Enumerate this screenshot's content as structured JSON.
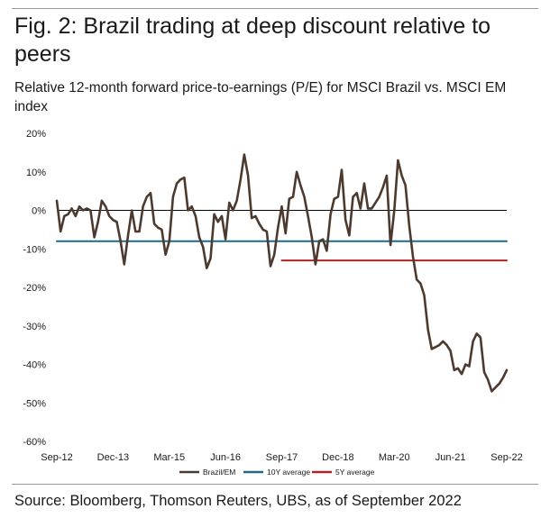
{
  "title": "Fig. 2: Brazil trading at deep discount relative to peers",
  "subtitle": "Relative 12-month forward price-to-earnings (P/E) for MSCI Brazil vs. MSCI EM index",
  "source": "Source: Bloomberg, Thomson Reuters, UBS, as of September 2022",
  "colors": {
    "brazil_em": "#4d3a2f",
    "avg_10y": "#1f6a8a",
    "avg_5y": "#b22222",
    "zero_line": "#000000",
    "rules": "#9a9a9a"
  },
  "chart_data": {
    "type": "line",
    "title": "Fig. 2: Brazil trading at deep discount relative to peers",
    "subtitle": "Relative 12-month forward price-to-earnings (P/E) for MSCI Brazil vs. MSCI EM index",
    "xlabel": "",
    "ylabel": "",
    "x_tick_labels": [
      "Sep-12",
      "Dec-13",
      "Mar-15",
      "Jun-16",
      "Sep-17",
      "Dec-18",
      "Mar-20",
      "Jun-21",
      "Sep-22"
    ],
    "y_ticks": [
      20,
      10,
      0,
      -10,
      -20,
      -30,
      -40,
      -50,
      -60
    ],
    "y_tick_labels": [
      "20%",
      "10%",
      "0%",
      "-10%",
      "-20%",
      "-30%",
      "-40%",
      "-50%",
      "-60%"
    ],
    "ylim": [
      -60,
      20
    ],
    "xlim": [
      "2012-09",
      "2022-09"
    ],
    "grid": false,
    "legend_position": "bottom",
    "series": [
      {
        "name": "Brazil/EM",
        "points": [
          [
            "2012-09",
            2.5
          ],
          [
            "2012-10",
            -5.5
          ],
          [
            "2012-11",
            -1.5
          ],
          [
            "2012-12",
            -1.0
          ],
          [
            "2013-01",
            0.5
          ],
          [
            "2013-02",
            -1.5
          ],
          [
            "2013-03",
            1.0
          ],
          [
            "2013-04",
            0.0
          ],
          [
            "2013-05",
            0.5
          ],
          [
            "2013-06",
            0.0
          ],
          [
            "2013-07",
            -7.0
          ],
          [
            "2013-08",
            -3.0
          ],
          [
            "2013-09",
            2.5
          ],
          [
            "2013-10",
            1.0
          ],
          [
            "2013-11",
            -1.5
          ],
          [
            "2013-12",
            -2.5
          ],
          [
            "2014-01",
            -3.0
          ],
          [
            "2014-02",
            -8.0
          ],
          [
            "2014-03",
            -14.0
          ],
          [
            "2014-04",
            -6.5
          ],
          [
            "2014-05",
            0.0
          ],
          [
            "2014-06",
            -5.5
          ],
          [
            "2014-07",
            -5.5
          ],
          [
            "2014-08",
            1.0
          ],
          [
            "2014-09",
            3.5
          ],
          [
            "2014-10",
            4.5
          ],
          [
            "2014-11",
            -3.5
          ],
          [
            "2014-12",
            -4.5
          ],
          [
            "2015-01",
            -5.0
          ],
          [
            "2015-02",
            -11.5
          ],
          [
            "2015-03",
            -8.0
          ],
          [
            "2015-04",
            3.5
          ],
          [
            "2015-05",
            7.0
          ],
          [
            "2015-06",
            8.0
          ],
          [
            "2015-07",
            8.5
          ],
          [
            "2015-08",
            0.0
          ],
          [
            "2015-09",
            1.0
          ],
          [
            "2015-10",
            -1.5
          ],
          [
            "2015-11",
            -7.0
          ],
          [
            "2015-12",
            -9.5
          ],
          [
            "2016-01",
            -15.0
          ],
          [
            "2016-02",
            -12.5
          ],
          [
            "2016-03",
            -1.0
          ],
          [
            "2016-04",
            -3.0
          ],
          [
            "2016-05",
            -1.5
          ],
          [
            "2016-06",
            -7.5
          ],
          [
            "2016-07",
            2.0
          ],
          [
            "2016-08",
            0.0
          ],
          [
            "2016-09",
            2.5
          ],
          [
            "2016-10",
            8.0
          ],
          [
            "2016-11",
            14.5
          ],
          [
            "2016-12",
            9.0
          ],
          [
            "2017-01",
            -2.0
          ],
          [
            "2017-02",
            -1.5
          ],
          [
            "2017-03",
            -3.5
          ],
          [
            "2017-04",
            -5.0
          ],
          [
            "2017-05",
            -5.5
          ],
          [
            "2017-06",
            -14.5
          ],
          [
            "2017-07",
            -11.5
          ],
          [
            "2017-08",
            -4.5
          ],
          [
            "2017-09",
            1.0
          ],
          [
            "2017-10",
            -6.0
          ],
          [
            "2017-11",
            3.0
          ],
          [
            "2017-12",
            3.5
          ],
          [
            "2018-01",
            10.0
          ],
          [
            "2018-02",
            6.5
          ],
          [
            "2018-03",
            3.5
          ],
          [
            "2018-04",
            -1.5
          ],
          [
            "2018-05",
            -7.0
          ],
          [
            "2018-06",
            -14.0
          ],
          [
            "2018-07",
            -8.0
          ],
          [
            "2018-08",
            -7.5
          ],
          [
            "2018-09",
            -10.5
          ],
          [
            "2018-10",
            -1.0
          ],
          [
            "2018-11",
            3.0
          ],
          [
            "2018-12",
            3.5
          ],
          [
            "2019-01",
            10.5
          ],
          [
            "2019-02",
            -2.5
          ],
          [
            "2019-03",
            -6.5
          ],
          [
            "2019-04",
            3.5
          ],
          [
            "2019-05",
            4.5
          ],
          [
            "2019-06",
            0.5
          ],
          [
            "2019-07",
            7.0
          ],
          [
            "2019-08",
            0.5
          ],
          [
            "2019-09",
            0.5
          ],
          [
            "2019-10",
            2.0
          ],
          [
            "2019-11",
            3.5
          ],
          [
            "2019-12",
            6.0
          ],
          [
            "2020-01",
            9.0
          ],
          [
            "2020-02",
            -9.0
          ],
          [
            "2020-03",
            0.0
          ],
          [
            "2020-04",
            13.0
          ],
          [
            "2020-05",
            9.0
          ],
          [
            "2020-06",
            6.5
          ],
          [
            "2020-07",
            -4.0
          ],
          [
            "2020-08",
            -12.0
          ],
          [
            "2020-09",
            -18.0
          ],
          [
            "2020-10",
            -19.0
          ],
          [
            "2020-11",
            -22.0
          ],
          [
            "2020-12",
            -31.0
          ],
          [
            "2021-01",
            -36.0
          ],
          [
            "2021-02",
            -35.5
          ],
          [
            "2021-03",
            -35.0
          ],
          [
            "2021-04",
            -34.0
          ],
          [
            "2021-05",
            -35.0
          ],
          [
            "2021-06",
            -36.5
          ],
          [
            "2021-07",
            -41.5
          ],
          [
            "2021-08",
            -41.0
          ],
          [
            "2021-09",
            -42.5
          ],
          [
            "2021-10",
            -40.0
          ],
          [
            "2021-11",
            -40.5
          ],
          [
            "2021-12",
            -34.0
          ],
          [
            "2022-01",
            -32.0
          ],
          [
            "2022-02",
            -33.0
          ],
          [
            "2022-03",
            -42.0
          ],
          [
            "2022-04",
            -44.0
          ],
          [
            "2022-05",
            -47.0
          ],
          [
            "2022-06",
            -46.0
          ],
          [
            "2022-07",
            -45.0
          ],
          [
            "2022-08",
            -43.5
          ],
          [
            "2022-09",
            -41.5
          ]
        ]
      },
      {
        "name": "10Y average",
        "points": [
          [
            "2012-09",
            -8.0
          ],
          [
            "2022-09",
            -8.0
          ]
        ]
      },
      {
        "name": "5Y average",
        "points": [
          [
            "2017-09",
            -13.0
          ],
          [
            "2022-09",
            -13.0
          ]
        ]
      }
    ],
    "reference_lines": [
      {
        "y": 0
      }
    ]
  }
}
